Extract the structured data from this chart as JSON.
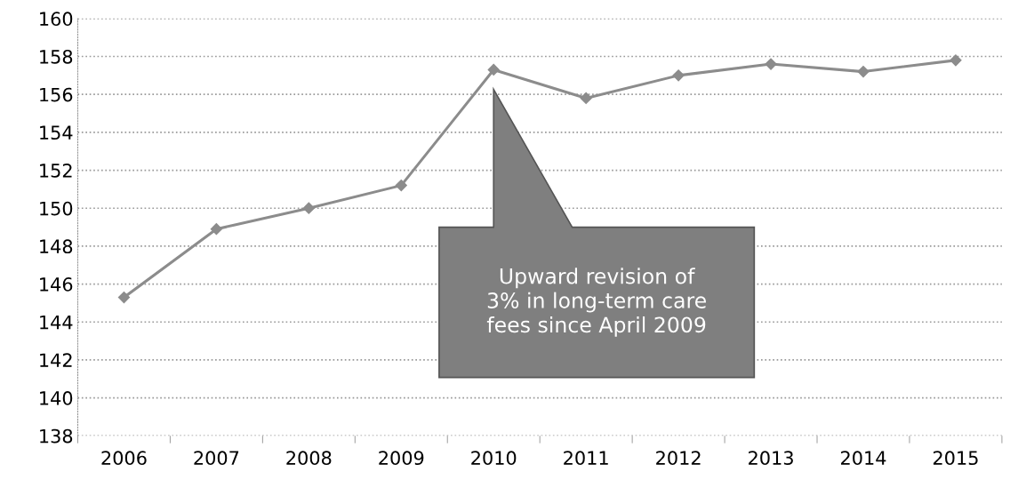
{
  "chart_data": {
    "type": "line",
    "categories": [
      "2006",
      "2007",
      "2008",
      "2009",
      "2010",
      "2011",
      "2012",
      "2013",
      "2014",
      "2015"
    ],
    "series": [
      {
        "color": "#8c8c8c",
        "values": [
          145.3,
          148.9,
          150.0,
          151.2,
          157.3,
          155.8,
          157.0,
          157.6,
          157.2,
          157.8
        ]
      }
    ],
    "ylim": [
      138,
      160
    ],
    "yticks": [
      138,
      140,
      142,
      144,
      146,
      148,
      150,
      152,
      154,
      156,
      158,
      160
    ],
    "grid": "y",
    "marker": "diamond",
    "line_style": "solid",
    "annotations": [
      "Upward revision of\n3% in long-term care\nfees since April 2009"
    ]
  }
}
